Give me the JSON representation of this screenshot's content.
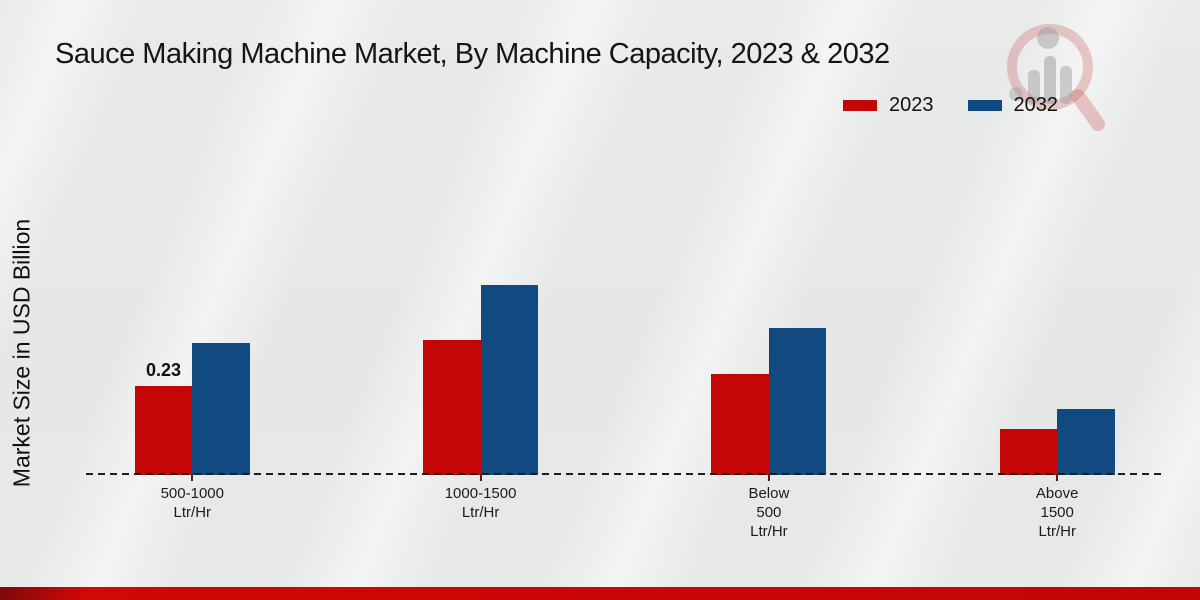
{
  "title": "Sauce Making Machine Market, By Machine Capacity, 2023 & 2032",
  "ylabel": "Market Size in USD Billion",
  "legend": [
    {
      "label": "2023",
      "color": "#c40606"
    },
    {
      "label": "2032",
      "color": "#114a80"
    }
  ],
  "colors": {
    "background": "#e7e8e8",
    "footer_bar": "#c30505",
    "series_2023": "#c40606",
    "series_2032": "#114a80",
    "axis": "#1d1d1d"
  },
  "watermark_icon": "magnifier-bar-chart-logo",
  "chart_data": {
    "type": "bar",
    "categories": [
      "500-1000 Ltr/Hr",
      "1000-1500 Ltr/Hr",
      "Below 500 Ltr/Hr",
      "Above 1500 Ltr/Hr"
    ],
    "category_label_lines": [
      [
        "500-1000",
        "Ltr/Hr"
      ],
      [
        "1000-1500",
        "Ltr/Hr"
      ],
      [
        "Below",
        "500",
        "Ltr/Hr"
      ],
      [
        "Above",
        "1500",
        "Ltr/Hr"
      ]
    ],
    "series": [
      {
        "name": "2023",
        "color": "#c40606",
        "values": [
          0.23,
          0.35,
          0.26,
          0.12
        ]
      },
      {
        "name": "2032",
        "color": "#114a80",
        "values": [
          0.34,
          0.49,
          0.38,
          0.17
        ]
      }
    ],
    "annotations": [
      {
        "series_index": 0,
        "category_index": 0,
        "text": "0.23"
      }
    ],
    "title": "Sauce Making Machine Market, By Machine Capacity, 2023 & 2032",
    "xlabel": "",
    "ylabel": "Market Size in USD Billion",
    "ylim": [
      0,
      0.55
    ],
    "grid": false,
    "y_axis_ticks_visible": false,
    "legend_position": "top-right",
    "baseline_style": "dashed"
  }
}
